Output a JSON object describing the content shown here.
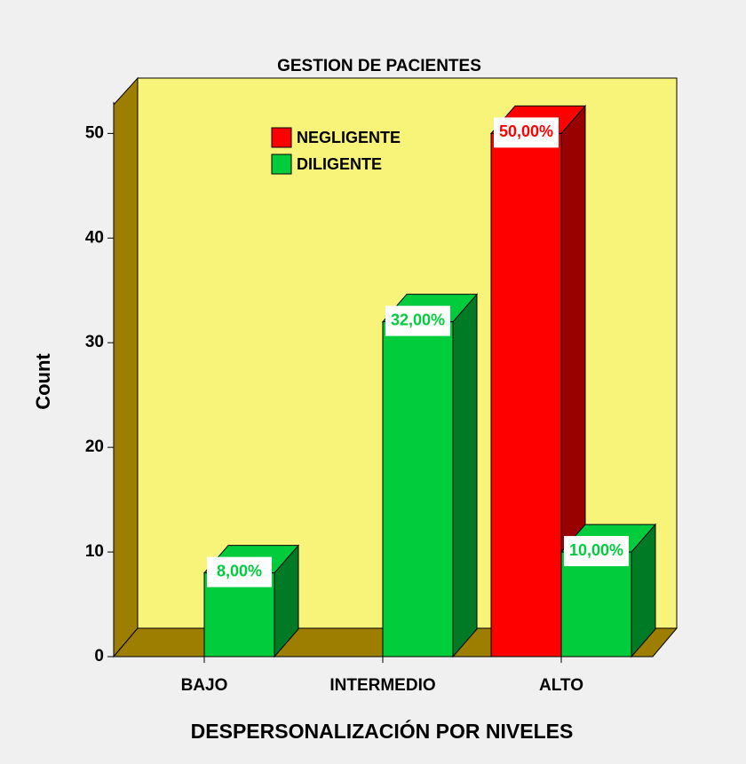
{
  "chart_data": {
    "type": "bar3d",
    "title": "GESTION DE PACIENTES",
    "x_label": "DESPERSONALIZACIÓN POR NIVELES",
    "y_label": "Count",
    "categories": [
      "BAJO",
      "INTERMEDIO",
      "ALTO"
    ],
    "series": [
      {
        "name": "NEGLIGENTE",
        "color": "#ff0000",
        "side_color": "#990000",
        "values": [
          null,
          null,
          50
        ],
        "value_labels": [
          null,
          null,
          "50,00%"
        ]
      },
      {
        "name": "DILIGENTE",
        "color": "#00cc3c",
        "side_color": "#007a24",
        "values": [
          8,
          32,
          10
        ],
        "value_labels": [
          "8,00%",
          "32,00%",
          "10,00%"
        ]
      }
    ],
    "ylim": [
      0,
      53
    ],
    "yticks": [
      0,
      10,
      20,
      30,
      40,
      50
    ]
  }
}
